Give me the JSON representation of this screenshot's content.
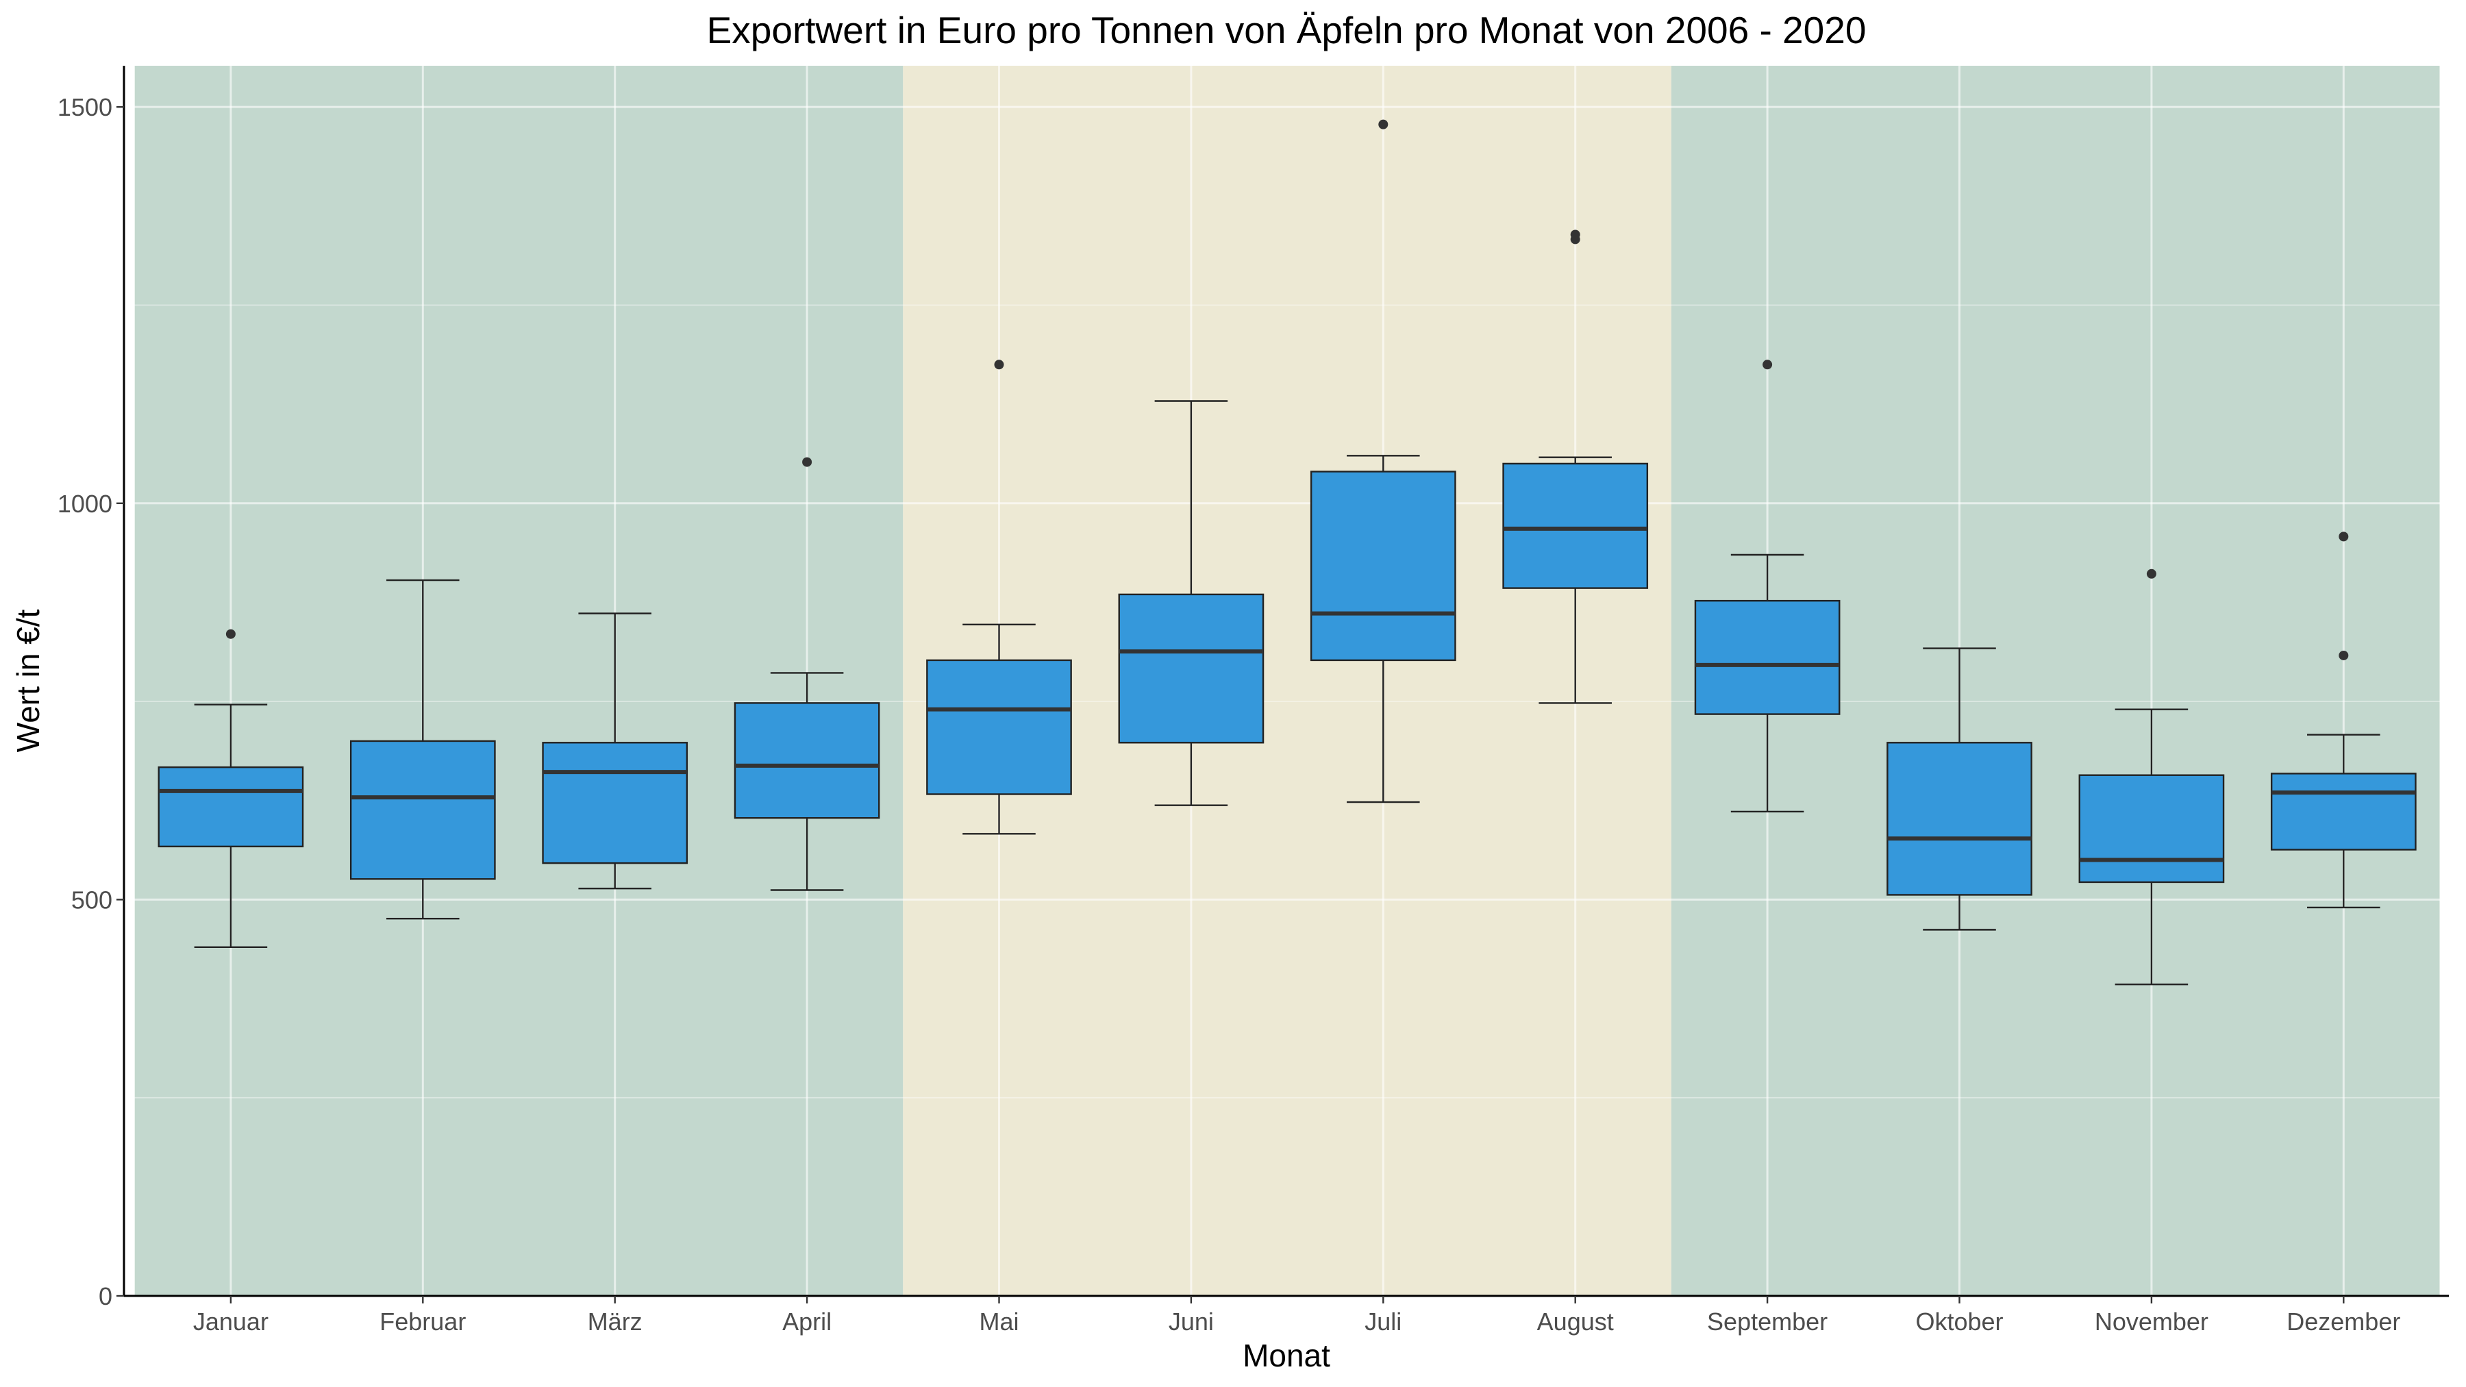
{
  "chart_data": {
    "type": "boxplot",
    "title": "Exportwert in Euro pro Tonnen von Äpfeln pro Monat von 2006 - 2020",
    "xlabel": "Monat",
    "ylabel": "Wert in €/t",
    "categories": [
      "Januar",
      "Februar",
      "März",
      "April",
      "Mai",
      "Juni",
      "Juli",
      "August",
      "September",
      "Oktober",
      "November",
      "Dezember"
    ],
    "yticks": [
      0,
      500,
      1000,
      1500
    ],
    "ylim": [
      0,
      1552
    ],
    "grid": true,
    "boxes": [
      {
        "low": 440,
        "q1": 567,
        "median": 637,
        "q3": 667,
        "high": 746,
        "outliers": [
          835
        ]
      },
      {
        "low": 476,
        "q1": 526,
        "median": 629,
        "q3": 700,
        "high": 903,
        "outliers": []
      },
      {
        "low": 514,
        "q1": 546,
        "median": 661,
        "q3": 698,
        "high": 861,
        "outliers": []
      },
      {
        "low": 512,
        "q1": 603,
        "median": 669,
        "q3": 748,
        "high": 786,
        "outliers": [
          1052
        ]
      },
      {
        "low": 583,
        "q1": 633,
        "median": 740,
        "q3": 802,
        "high": 847,
        "outliers": [
          1175
        ]
      },
      {
        "low": 619,
        "q1": 698,
        "median": 813,
        "q3": 885,
        "high": 1129,
        "outliers": []
      },
      {
        "low": 623,
        "q1": 802,
        "median": 861,
        "q3": 1040,
        "high": 1060,
        "outliers": [
          1478
        ]
      },
      {
        "low": 748,
        "q1": 893,
        "median": 968,
        "q3": 1050,
        "high": 1058,
        "outliers": [
          1333,
          1339
        ]
      },
      {
        "low": 611,
        "q1": 734,
        "median": 796,
        "q3": 877,
        "high": 935,
        "outliers": [
          1175
        ]
      },
      {
        "low": 462,
        "q1": 506,
        "median": 577,
        "q3": 698,
        "high": 817,
        "outliers": []
      },
      {
        "low": 393,
        "q1": 522,
        "median": 550,
        "q3": 657,
        "high": 740,
        "outliers": [
          911
        ]
      },
      {
        "low": 490,
        "q1": 563,
        "median": 635,
        "q3": 659,
        "high": 708,
        "outliers": [
          808,
          958
        ]
      }
    ],
    "background_bands": [
      {
        "category_range": [
          1,
          4
        ],
        "color": "#c3d8ce"
      },
      {
        "category_range": [
          5,
          8
        ],
        "color": "#ede9d4"
      },
      {
        "category_range": [
          9,
          12
        ],
        "color": "#c3d8ce"
      }
    ],
    "colors": {
      "box_fill": "#3598db",
      "box_outline": "#222222",
      "whisker": "#222222",
      "median": "#333333",
      "outlier": "#333333",
      "grid": "#ffffff",
      "axis": "#000000"
    }
  }
}
